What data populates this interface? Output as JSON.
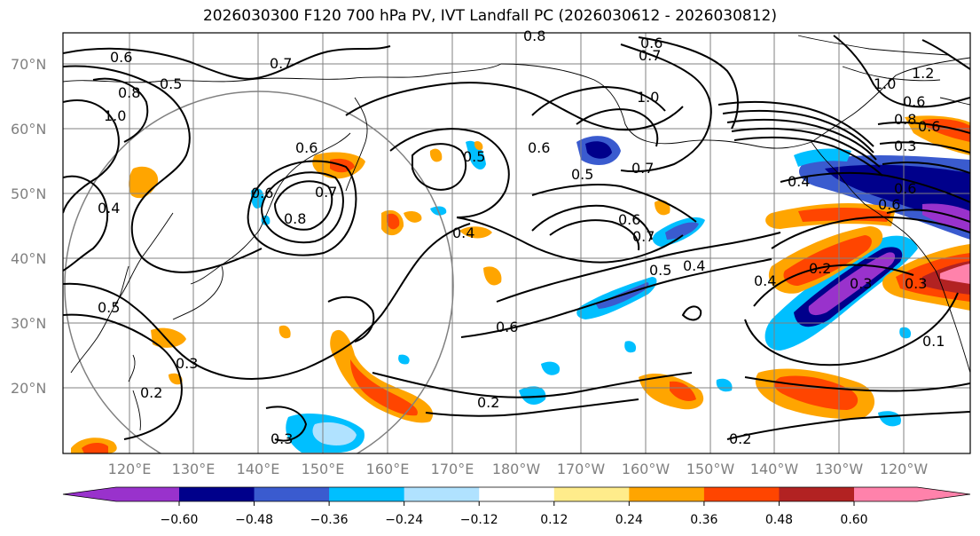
{
  "title": "2026030300 F120 700 hPa PV, IVT Landfall PC (2026030612 - 2026030812)",
  "lat_labels": [
    "70°N",
    "60°N",
    "50°N",
    "40°N",
    "30°N",
    "20°N"
  ],
  "lon_labels": [
    "120°E",
    "130°E",
    "140°E",
    "150°E",
    "160°E",
    "170°E",
    "180°W",
    "170°W",
    "160°W",
    "150°W",
    "140°W",
    "130°W",
    "120°W"
  ],
  "colorbar": {
    "colors": [
      "#9932cc",
      "#00008b",
      "#3a5bcf",
      "#00bfff",
      "#b0e2ff",
      "#ffffff",
      "#ffec8b",
      "#ffa500",
      "#ff4500",
      "#b22222",
      "#ff82ab"
    ],
    "tick_labels": [
      "−0.60",
      "−0.48",
      "−0.36",
      "−0.24",
      "−0.12",
      "0.12",
      "0.24",
      "0.36",
      "0.48",
      "0.60"
    ]
  },
  "contour_labels": [
    "0.8",
    "0.6",
    "0.7",
    "0.6",
    "0.7",
    "0.5",
    "1.0",
    "0.8",
    "1.0",
    "1.0",
    "1.2",
    "0.6",
    "0.6",
    "0.7",
    "0.5",
    "0.6",
    "0.4",
    "0.8",
    "0.5",
    "0.6",
    "0.7",
    "0.6",
    "0.7",
    "0.6",
    "0.4",
    "0.5",
    "0.4",
    "0.4",
    "0.2",
    "0.3",
    "0.3",
    "0.6",
    "0.5",
    "0.3",
    "0.2",
    "0.3",
    "0.2",
    "0.2",
    "0.1",
    "0.3",
    "0.4",
    "0.8",
    "0.6",
    "0.6"
  ]
}
